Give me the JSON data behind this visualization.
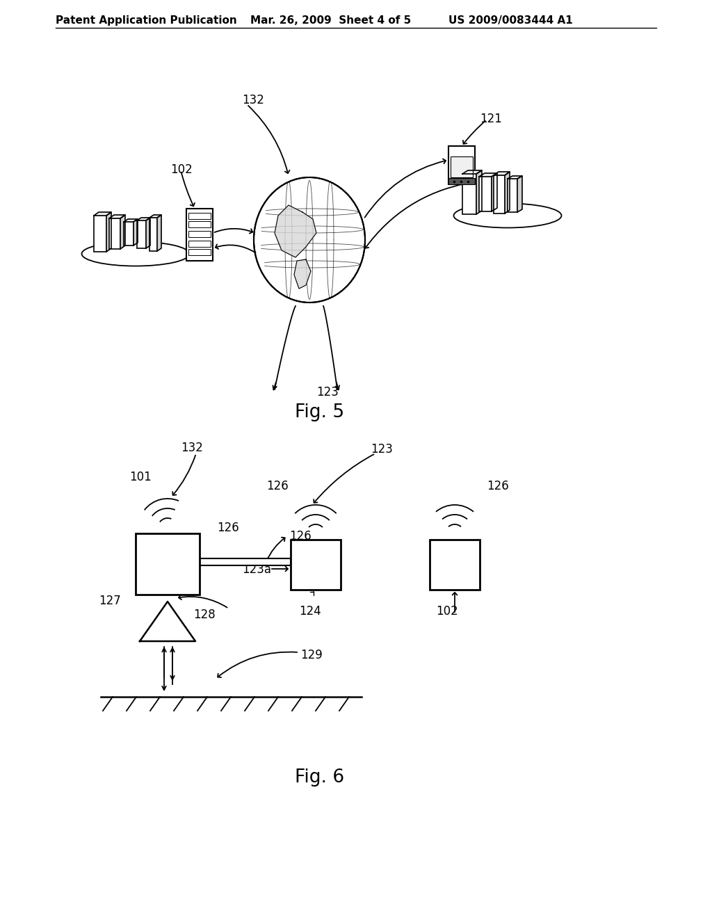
{
  "bg_color": "#ffffff",
  "header_left": "Patent Application Publication",
  "header_mid": "Mar. 26, 2009  Sheet 4 of 5",
  "header_right": "US 2009/0083444 A1",
  "fig5_label": "Fig. 5",
  "fig6_label": "Fig. 6"
}
